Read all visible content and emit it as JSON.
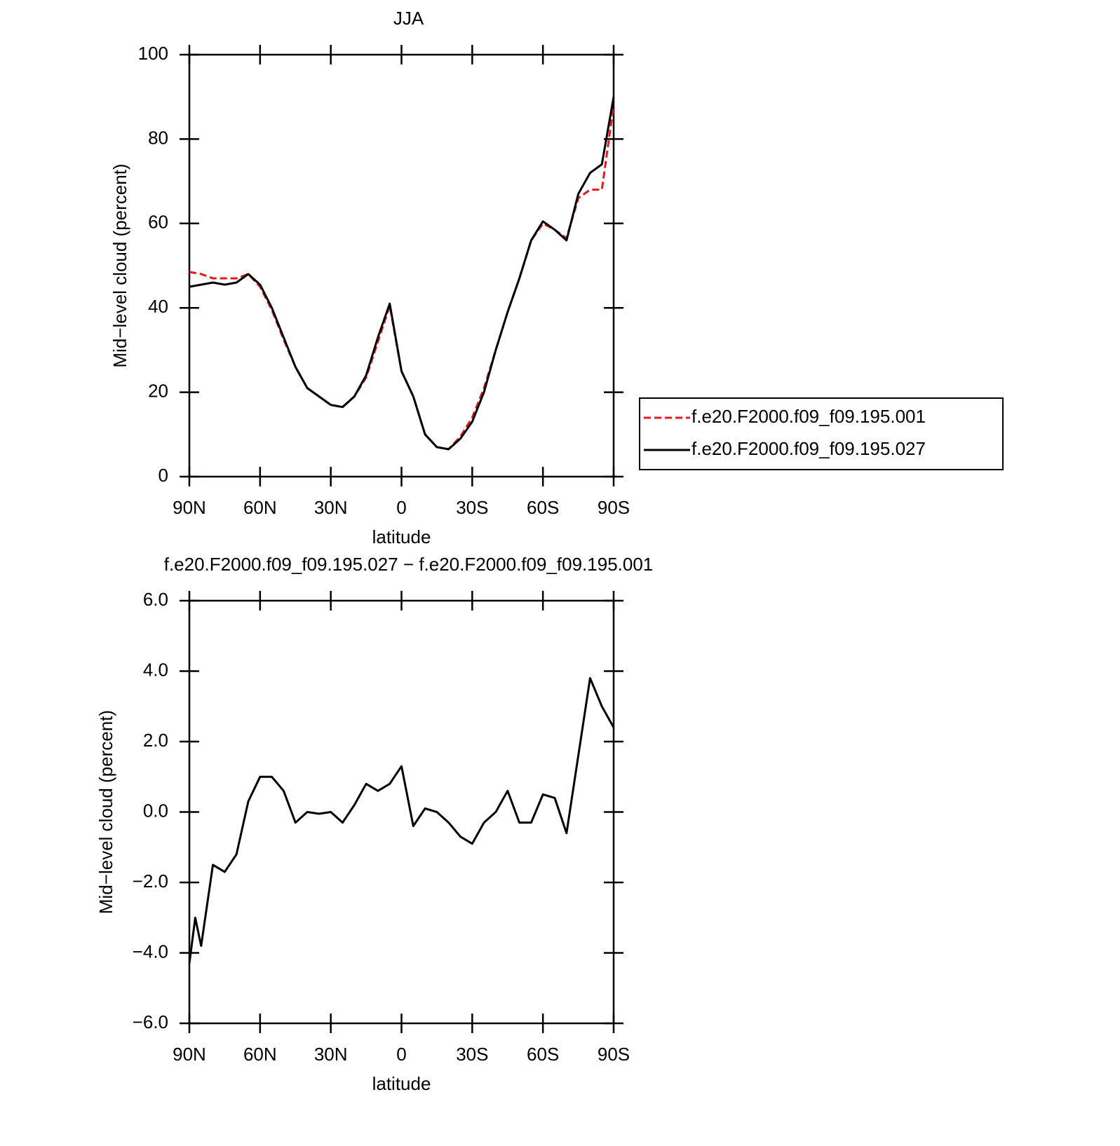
{
  "chart_data": [
    {
      "type": "line",
      "title": "JJA",
      "xlabel": "latitude",
      "ylabel": "Mid−level cloud (percent)",
      "x": [
        90,
        85,
        80,
        75,
        70,
        65,
        60,
        55,
        50,
        45,
        40,
        35,
        30,
        25,
        20,
        15,
        10,
        5,
        0,
        -5,
        -10,
        -15,
        -20,
        -25,
        -30,
        -35,
        -40,
        -45,
        -50,
        -55,
        -60,
        -65,
        -70,
        -75,
        -80,
        -85,
        -90
      ],
      "series": [
        {
          "name": "f.e20.F2000.f09_f09.195.001",
          "color": "#e41a1c",
          "linestyle": "dashed",
          "values": [
            48.5,
            48,
            47,
            47,
            47,
            48,
            45,
            39.5,
            32.5,
            26,
            21,
            19,
            17,
            16.5,
            19,
            23.5,
            32,
            40.5,
            25,
            19,
            10,
            7,
            6.5,
            9.5,
            14,
            21,
            30,
            39,
            47,
            56,
            60,
            58.5,
            56.5,
            66,
            68,
            68,
            88
          ]
        },
        {
          "name": "f.e20.F2000.f09_f09.195.027",
          "color": "#000000",
          "linestyle": "solid",
          "values": [
            45,
            45.5,
            46,
            45.5,
            46,
            48,
            45.5,
            40,
            33,
            26,
            21,
            19,
            17,
            16.5,
            19,
            24,
            33,
            41,
            25,
            19,
            10,
            7,
            6.5,
            9,
            13,
            20,
            30,
            39,
            47,
            56,
            60.5,
            58.5,
            56,
            67,
            72,
            74,
            90
          ]
        }
      ],
      "xlim": [
        90,
        -90
      ],
      "xticks": [
        {
          "value": 90,
          "label": "90N"
        },
        {
          "value": 60,
          "label": "60N"
        },
        {
          "value": 30,
          "label": "30N"
        },
        0,
        {
          "value": -30,
          "label": "30S"
        },
        {
          "value": -60,
          "label": "60S"
        },
        {
          "value": -90,
          "label": "90S"
        }
      ],
      "ylim": [
        0,
        100
      ],
      "yticks": [
        0,
        20,
        40,
        60,
        80,
        100
      ],
      "legend": "outside right"
    },
    {
      "type": "line",
      "title": "f.e20.F2000.f09_f09.195.027 − f.e20.F2000.f09_f09.195.001",
      "xlabel": "latitude",
      "ylabel": "Mid−level cloud (percent)",
      "x": [
        90,
        87.5,
        85,
        80,
        75,
        70,
        65,
        60,
        55,
        50,
        45,
        40,
        35,
        30,
        25,
        20,
        15,
        10,
        5,
        0,
        -5,
        -10,
        -15,
        -20,
        -25,
        -30,
        -35,
        -40,
        -45,
        -50,
        -55,
        -60,
        -65,
        -70,
        -75,
        -80,
        -85,
        -90
      ],
      "series": [
        {
          "color": "#000000",
          "linestyle": "solid",
          "values": [
            -4.3,
            -3,
            -3.8,
            -1.5,
            -1.7,
            -1.2,
            0.3,
            1,
            1,
            0.6,
            -0.3,
            0,
            -0.05,
            0,
            -0.3,
            0.2,
            0.8,
            0.6,
            0.8,
            1.3,
            -0.4,
            0.1,
            0,
            -0.3,
            -0.7,
            -0.9,
            -0.3,
            0,
            0.6,
            -0.3,
            -0.3,
            0.5,
            0.4,
            -0.6,
            1.6,
            3.8,
            3,
            2.4
          ]
        }
      ],
      "xlim": [
        90,
        -90
      ],
      "xticks": [
        {
          "value": 90,
          "label": "90N"
        },
        {
          "value": 60,
          "label": "60N"
        },
        {
          "value": 30,
          "label": "30N"
        },
        0,
        {
          "value": -30,
          "label": "30S"
        },
        {
          "value": -60,
          "label": "60S"
        },
        {
          "value": -90,
          "label": "90S"
        }
      ],
      "ylim": [
        -6,
        6
      ],
      "yticks": [
        {
          "value": -6,
          "label": "−6.0"
        },
        {
          "value": -4,
          "label": "−4.0"
        },
        {
          "value": -2,
          "label": "−2.0"
        },
        {
          "value": 0,
          "label": "0.0"
        },
        {
          "value": 2,
          "label": "2.0"
        },
        {
          "value": 4,
          "label": "4.0"
        },
        {
          "value": 6,
          "label": "6.0"
        }
      ]
    }
  ]
}
